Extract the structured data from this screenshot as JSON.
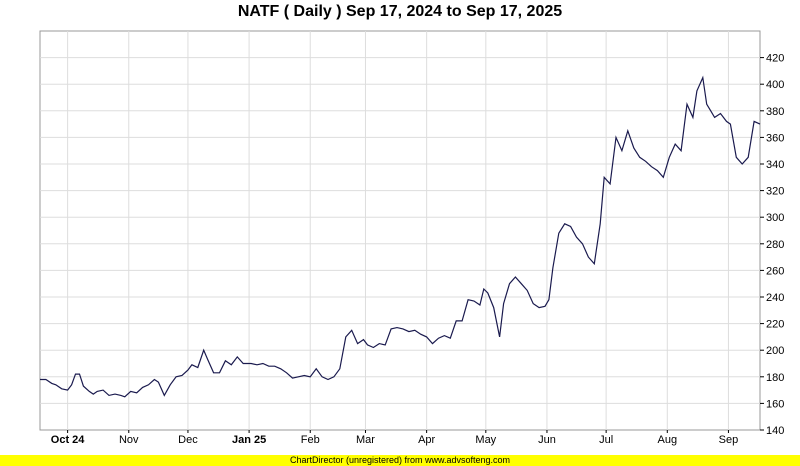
{
  "chart_data": {
    "type": "line",
    "title": "NATF ( Daily ) Sep 17, 2024 to Sep 17, 2025",
    "xlabel": "",
    "ylabel": "",
    "ylim": [
      140,
      440
    ],
    "y_ticks": [
      140,
      160,
      180,
      200,
      220,
      240,
      260,
      280,
      300,
      320,
      340,
      360,
      380,
      400,
      420
    ],
    "x_range": [
      "2024-09-17",
      "2025-09-17"
    ],
    "x_ticks": [
      {
        "date": "2024-10-01",
        "label": "Oct 24",
        "bold": true
      },
      {
        "date": "2024-11-01",
        "label": "Nov",
        "bold": false
      },
      {
        "date": "2024-12-01",
        "label": "Dec",
        "bold": false
      },
      {
        "date": "2025-01-01",
        "label": "Jan 25",
        "bold": true
      },
      {
        "date": "2025-02-01",
        "label": "Feb",
        "bold": false
      },
      {
        "date": "2025-03-01",
        "label": "Mar",
        "bold": false
      },
      {
        "date": "2025-04-01",
        "label": "Apr",
        "bold": false
      },
      {
        "date": "2025-05-01",
        "label": "May",
        "bold": false
      },
      {
        "date": "2025-06-01",
        "label": "Jun",
        "bold": false
      },
      {
        "date": "2025-07-01",
        "label": "Jul",
        "bold": false
      },
      {
        "date": "2025-08-01",
        "label": "Aug",
        "bold": false
      },
      {
        "date": "2025-09-01",
        "label": "Sep",
        "bold": false
      }
    ],
    "grid": true,
    "line_color": "#1a1a4e",
    "series": [
      {
        "x": [
          "2024-09-17",
          "2024-09-20",
          "2024-09-23",
          "2024-09-25",
          "2024-09-28",
          "2024-10-01",
          "2024-10-03",
          "2024-10-05",
          "2024-10-07",
          "2024-10-09",
          "2024-10-12",
          "2024-10-14",
          "2024-10-16",
          "2024-10-19",
          "2024-10-22",
          "2024-10-25",
          "2024-10-28",
          "2024-10-30",
          "2024-11-02",
          "2024-11-05",
          "2024-11-08",
          "2024-11-11",
          "2024-11-14",
          "2024-11-16",
          "2024-11-19",
          "2024-11-22",
          "2024-11-25",
          "2024-11-28",
          "2024-12-01",
          "2024-12-03",
          "2024-12-06",
          "2024-12-09",
          "2024-12-11",
          "2024-12-14",
          "2024-12-17",
          "2024-12-20",
          "2024-12-23",
          "2024-12-26",
          "2024-12-29",
          "2025-01-02",
          "2025-01-05",
          "2025-01-08",
          "2025-01-11",
          "2025-01-14",
          "2025-01-17",
          "2025-01-20",
          "2025-01-23",
          "2025-01-26",
          "2025-01-29",
          "2025-02-01",
          "2025-02-04",
          "2025-02-07",
          "2025-02-10",
          "2025-02-13",
          "2025-02-16",
          "2025-02-19",
          "2025-02-22",
          "2025-02-25",
          "2025-02-28",
          "2025-03-02",
          "2025-03-05",
          "2025-03-08",
          "2025-03-11",
          "2025-03-14",
          "2025-03-17",
          "2025-03-20",
          "2025-03-23",
          "2025-03-26",
          "2025-03-29",
          "2025-04-01",
          "2025-04-04",
          "2025-04-07",
          "2025-04-10",
          "2025-04-13",
          "2025-04-16",
          "2025-04-19",
          "2025-04-22",
          "2025-04-25",
          "2025-04-28",
          "2025-04-30",
          "2025-05-02",
          "2025-05-05",
          "2025-05-08",
          "2025-05-10",
          "2025-05-13",
          "2025-05-16",
          "2025-05-19",
          "2025-05-22",
          "2025-05-25",
          "2025-05-28",
          "2025-05-31",
          "2025-06-02",
          "2025-06-04",
          "2025-06-07",
          "2025-06-10",
          "2025-06-13",
          "2025-06-16",
          "2025-06-19",
          "2025-06-22",
          "2025-06-25",
          "2025-06-28",
          "2025-06-30",
          "2025-07-03",
          "2025-07-06",
          "2025-07-09",
          "2025-07-12",
          "2025-07-15",
          "2025-07-18",
          "2025-07-21",
          "2025-07-24",
          "2025-07-27",
          "2025-07-30",
          "2025-08-02",
          "2025-08-05",
          "2025-08-08",
          "2025-08-11",
          "2025-08-14",
          "2025-08-16",
          "2025-08-19",
          "2025-08-21",
          "2025-08-23",
          "2025-08-25",
          "2025-08-28",
          "2025-08-31",
          "2025-09-02",
          "2025-09-05",
          "2025-09-08",
          "2025-09-11",
          "2025-09-14",
          "2025-09-17"
        ],
        "values": [
          178,
          178,
          175,
          174,
          171,
          170,
          174,
          182,
          182,
          173,
          169,
          167,
          169,
          170,
          166,
          167,
          166,
          165,
          169,
          168,
          172,
          174,
          178,
          176,
          166,
          174,
          180,
          181,
          185,
          189,
          187,
          200,
          193,
          183,
          183,
          192,
          189,
          195,
          190,
          190,
          189,
          190,
          188,
          188,
          186,
          183,
          179,
          180,
          181,
          180,
          186,
          180,
          178,
          180,
          186,
          210,
          215,
          205,
          208,
          204,
          202,
          205,
          204,
          216,
          217,
          216,
          214,
          215,
          212,
          210,
          205,
          209,
          211,
          209,
          222,
          222,
          238,
          237,
          234,
          246,
          243,
          232,
          210,
          235,
          250,
          255,
          250,
          245,
          235,
          232,
          233,
          238,
          262,
          288,
          295,
          293,
          285,
          280,
          270,
          265,
          295,
          330,
          325,
          360,
          350,
          365,
          352,
          345,
          342,
          338,
          335,
          330,
          345,
          355,
          350,
          385,
          375,
          395,
          405,
          385,
          380,
          375,
          378,
          372,
          370,
          345,
          340,
          345,
          372,
          370
        ]
      }
    ]
  },
  "footer": {
    "text": "ChartDirector (unregistered) from www.advsofteng.com"
  }
}
